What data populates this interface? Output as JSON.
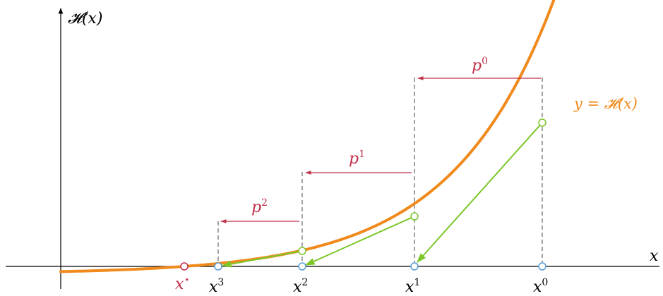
{
  "colors": {
    "curve": "#f08a1c",
    "tangent": "#7cc62a",
    "step_arrow": "#c0304a",
    "point_curve_stroke": "#7cc62a",
    "point_axis_stroke": "#5b9bd5",
    "point_root_stroke": "#c0304a",
    "axis": "#000000",
    "dashed": "#555555"
  },
  "axes": {
    "y_label": "𝓗(x)",
    "x_label": "x"
  },
  "curve": {
    "label": "y = 𝓗(x)"
  },
  "root": {
    "label": "x",
    "sup": "⋆"
  },
  "iterates": [
    {
      "label": "x",
      "sup": "0"
    },
    {
      "label": "x",
      "sup": "1"
    },
    {
      "label": "x",
      "sup": "2"
    },
    {
      "label": "x",
      "sup": "3"
    }
  ],
  "steps": [
    {
      "label": "p",
      "sup": "0"
    },
    {
      "label": "p",
      "sup": "1"
    },
    {
      "label": "p",
      "sup": "2"
    }
  ]
}
